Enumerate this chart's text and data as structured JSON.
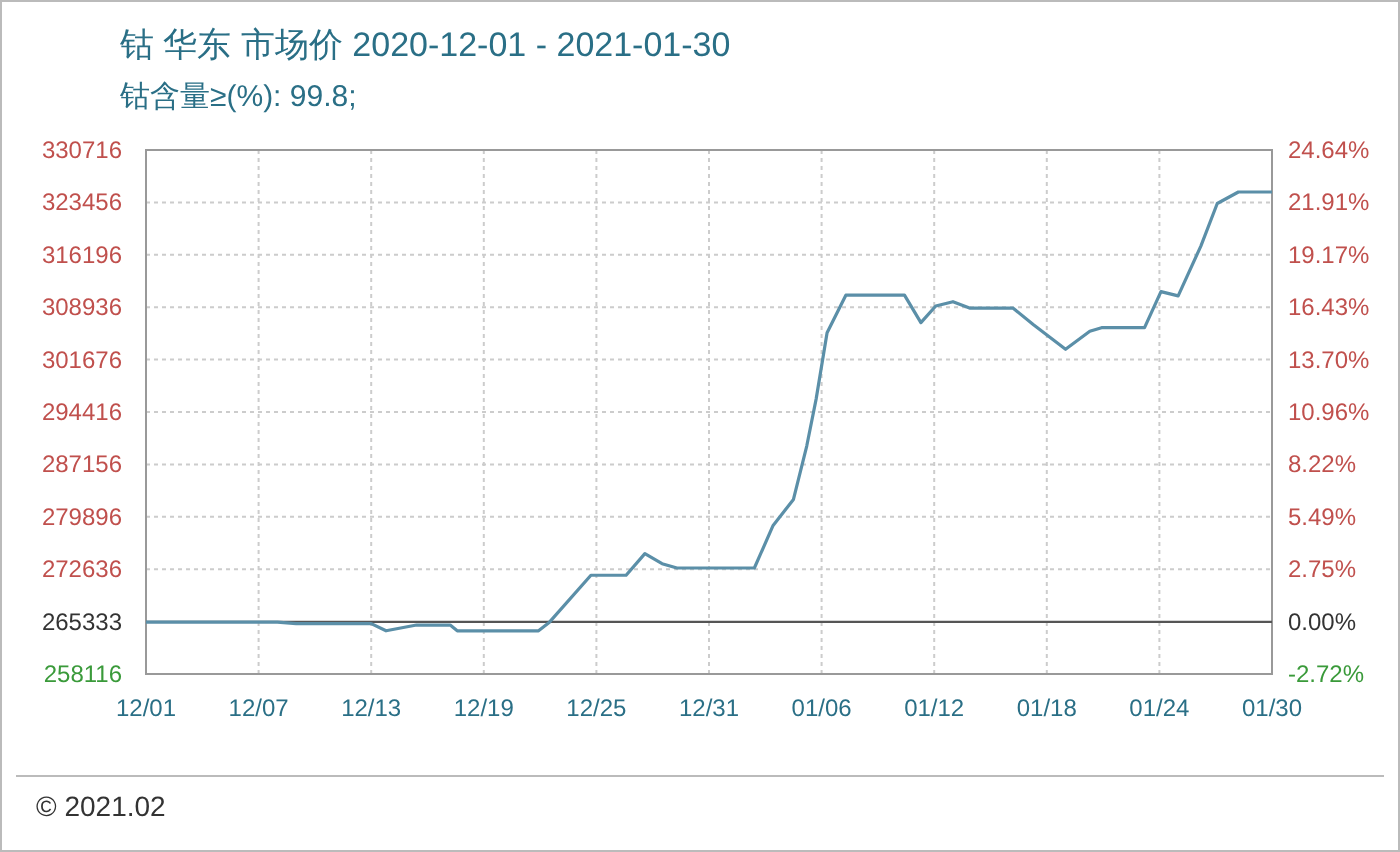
{
  "chart_data": {
    "type": "line",
    "title": "钴 华东 市场价 2020-12-01 - 2021-01-30",
    "subtitle": "钴含量≥(%): 99.8;",
    "annotations": [
      "© 2021.02"
    ],
    "x": [
      "2020-12-01",
      "2020-12-08",
      "2020-12-09",
      "2020-12-13",
      "2020-12-13T19:00",
      "2020-12-15T10:00",
      "2020-12-17T05:00",
      "2020-12-17T14:00",
      "2020-12-21T22:00",
      "2020-12-22T12:00",
      "2020-12-24T17:00",
      "2020-12-26T14:00",
      "2020-12-27T14:00",
      "2020-12-28T12:00",
      "2020-12-29T07:00",
      "2021-01-02T10:00",
      "2021-01-03T10:00",
      "2021-01-04T12:00",
      "2021-01-05T05:00",
      "2021-01-05T17:00",
      "2021-01-06T07:00",
      "2021-01-07T07:00",
      "2021-01-10T10:00",
      "2021-01-11T07:00",
      "2021-01-12T02:00",
      "2021-01-13",
      "2021-01-13T22:00",
      "2021-01-16T05:00",
      "2021-01-17T07:00",
      "2021-01-19",
      "2021-01-20T07:00",
      "2021-01-20T22:00",
      "2021-01-23T05:00",
      "2021-01-24T02:00",
      "2021-01-25",
      "2021-01-26T05:00",
      "2021-01-27T02:00",
      "2021-01-28T05:00",
      "2021-01-30"
    ],
    "series": [
      {
        "color": "#5b8fa8",
        "values": [
          265300,
          265300,
          265100,
          265100,
          264100,
          264900,
          264900,
          264100,
          264100,
          265300,
          271800,
          271800,
          274800,
          273400,
          272800,
          272800,
          278700,
          282300,
          289700,
          296200,
          305400,
          310600,
          310600,
          306800,
          309100,
          309700,
          308800,
          308800,
          306500,
          303100,
          305600,
          306100,
          306100,
          311100,
          310500,
          317400,
          323300,
          324900,
          324900
        ]
      }
    ],
    "xlim": [
      "2020-12-01",
      "2021-01-30"
    ],
    "xticks": [
      {
        "value": "2020-12-01",
        "label": "12/01"
      },
      {
        "value": "2020-12-07",
        "label": "12/07"
      },
      {
        "value": "2020-12-13",
        "label": "12/13"
      },
      {
        "value": "2020-12-19",
        "label": "12/19"
      },
      {
        "value": "2020-12-25",
        "label": "12/25"
      },
      {
        "value": "2020-12-31",
        "label": "12/31"
      },
      {
        "value": "2021-01-06",
        "label": "01/06"
      },
      {
        "value": "2021-01-12",
        "label": "01/12"
      },
      {
        "value": "2021-01-18",
        "label": "01/18"
      },
      {
        "value": "2021-01-24",
        "label": "01/24"
      },
      {
        "value": "2021-01-30",
        "label": "01/30"
      }
    ],
    "ylim": [
      258116,
      330716
    ],
    "yticks": [
      258116,
      265333,
      272636,
      279896,
      287156,
      294416,
      301676,
      308936,
      316196,
      323456,
      330716
    ],
    "y2lim": [
      -2.72,
      24.64
    ],
    "y2ticks": [
      {
        "value": -2.72,
        "label": "-2.72%"
      },
      {
        "value": 0,
        "label": "0.00%"
      },
      {
        "value": 2.75,
        "label": "2.75%"
      },
      {
        "value": 5.49,
        "label": "5.49%"
      },
      {
        "value": 8.22,
        "label": "8.22%"
      },
      {
        "value": 10.96,
        "label": "10.96%"
      },
      {
        "value": 13.7,
        "label": "13.70%"
      },
      {
        "value": 16.43,
        "label": "16.43%"
      },
      {
        "value": 19.17,
        "label": "19.17%"
      },
      {
        "value": 21.91,
        "label": "21.91%"
      },
      {
        "value": 24.64,
        "label": "24.64%"
      }
    ],
    "ref_lines": [
      {
        "axis": "y",
        "value": 265333,
        "color": "#555555"
      }
    ],
    "grid": true,
    "marker": "none",
    "line_style": "solid"
  }
}
